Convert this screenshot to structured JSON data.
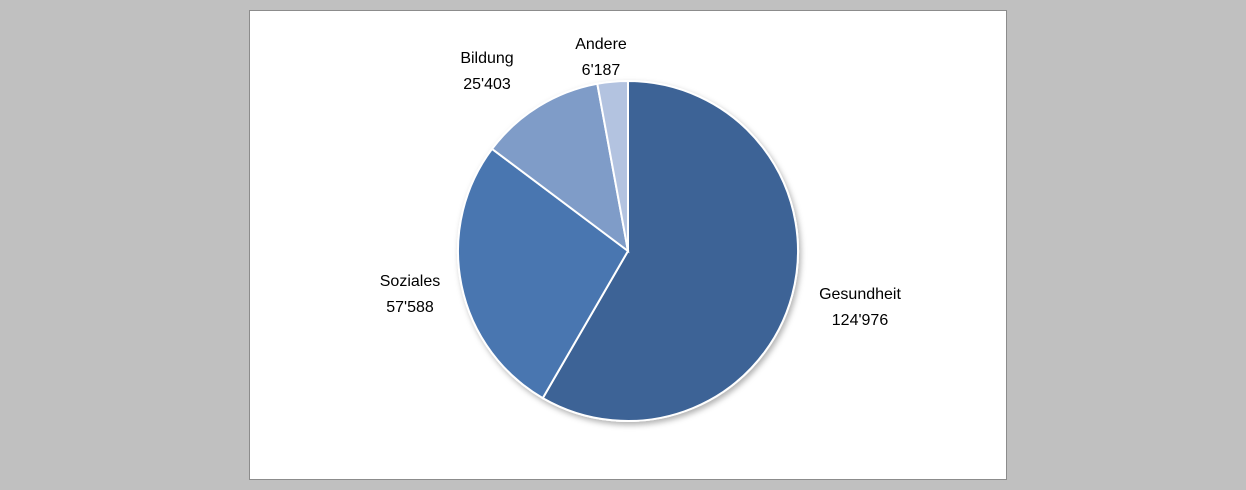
{
  "chart_data": {
    "type": "pie",
    "categories": [
      "Gesundheit",
      "Soziales",
      "Bildung",
      "Andere"
    ],
    "values": [
      124976,
      57588,
      25403,
      6187
    ],
    "value_labels": [
      "124'976",
      "57'588",
      "25'403",
      "6'187"
    ],
    "colors": [
      "#3e6496",
      "#4876b0",
      "#7f9cc8",
      "#b3c3e0"
    ]
  }
}
